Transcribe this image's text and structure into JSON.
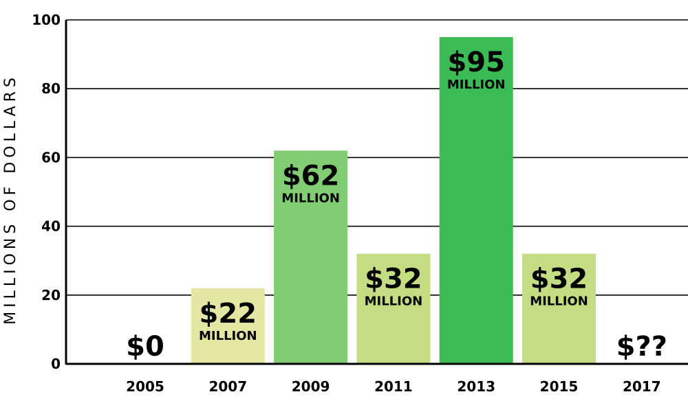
{
  "chart_data": {
    "type": "bar",
    "categories": [
      "2005",
      "2007",
      "2009",
      "2011",
      "2013",
      "2015",
      "2017"
    ],
    "values": [
      0,
      22,
      62,
      32,
      95,
      32,
      null
    ],
    "value_labels": [
      "$0",
      "$22",
      "$62",
      "$32",
      "$95",
      "$32",
      "$??"
    ],
    "value_units": [
      "",
      "MILLION",
      "MILLION",
      "MILLION",
      "MILLION",
      "MILLION",
      ""
    ],
    "bar_colors": [
      "#ffffff",
      "#e3e7a3",
      "#82cc74",
      "#c4dd83",
      "#3bbb55",
      "#c4dd83",
      "#ffffff"
    ],
    "title": "",
    "xlabel": "",
    "ylabel": "MILLIONS OF DOLLARS",
    "ylim": [
      0,
      100
    ],
    "yticks": [
      0,
      20,
      40,
      60,
      80,
      100
    ],
    "grid": true,
    "legend": "none"
  }
}
